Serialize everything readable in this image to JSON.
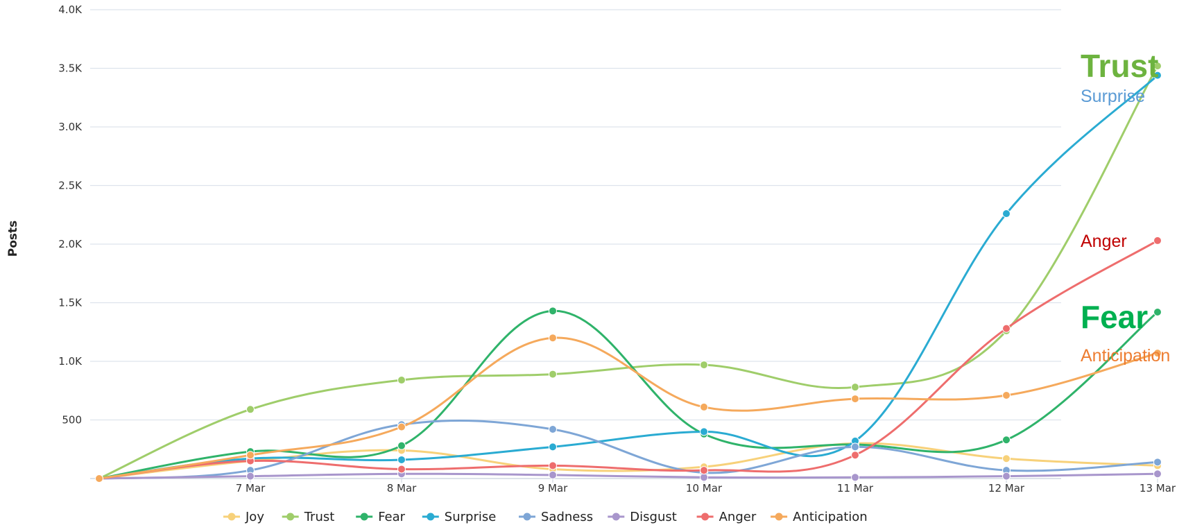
{
  "chart_data": {
    "type": "line",
    "title": "",
    "xlabel": "",
    "ylabel": "Posts",
    "x": [
      0,
      1,
      2,
      3,
      4,
      5,
      6,
      7
    ],
    "tick_x": [
      1,
      2,
      3,
      4,
      5,
      6,
      7
    ],
    "tick_labels": [
      "7 Mar",
      "8 Mar",
      "9 Mar",
      "10 Mar",
      "11 Mar",
      "12 Mar",
      "13 Mar"
    ],
    "ylim": [
      0,
      4000
    ],
    "yticks": [
      500,
      1000,
      1500,
      2000,
      2500,
      3000,
      3500,
      4000
    ],
    "ytick_labels": [
      "500",
      "1.0K",
      "1.5K",
      "2.0K",
      "2.5K",
      "3.0K",
      "3.5K",
      "4.0K"
    ],
    "grid": true,
    "legend_position": "bottom",
    "series": [
      {
        "name": "Joy",
        "color": "#f7d17a",
        "values": [
          0,
          150,
          240,
          80,
          100,
          300,
          170,
          110
        ]
      },
      {
        "name": "Trust",
        "color": "#9fcd6a",
        "values": [
          0,
          590,
          840,
          890,
          970,
          780,
          1260,
          3520
        ]
      },
      {
        "name": "Fear",
        "color": "#2fb36a",
        "values": [
          0,
          230,
          280,
          1430,
          380,
          290,
          330,
          1420
        ]
      },
      {
        "name": "Surprise",
        "color": "#2aabd2",
        "values": [
          0,
          170,
          160,
          270,
          400,
          320,
          2260,
          3440
        ]
      },
      {
        "name": "Sadness",
        "color": "#7ea6d6",
        "values": [
          0,
          70,
          460,
          420,
          50,
          270,
          70,
          140
        ]
      },
      {
        "name": "Disgust",
        "color": "#a896cc",
        "values": [
          0,
          20,
          40,
          30,
          10,
          10,
          20,
          40
        ]
      },
      {
        "name": "Anger",
        "color": "#ee6d6d",
        "values": [
          0,
          150,
          80,
          110,
          70,
          200,
          1280,
          2030
        ]
      },
      {
        "name": "Anticipation",
        "color": "#f5a95c",
        "values": [
          0,
          200,
          440,
          1200,
          610,
          680,
          710,
          1070
        ]
      }
    ]
  },
  "callouts": [
    {
      "text": "Trust",
      "color": "#6db33f",
      "size": "big"
    },
    {
      "text": "Surprise",
      "color": "#5b9bd5",
      "size": "small"
    },
    {
      "text": "Anger",
      "color": "#c00000",
      "size": "small"
    },
    {
      "text": "Fear",
      "color": "#00b050",
      "size": "big"
    },
    {
      "text": "Anticipation",
      "color": "#ed7d31",
      "size": "small"
    }
  ]
}
